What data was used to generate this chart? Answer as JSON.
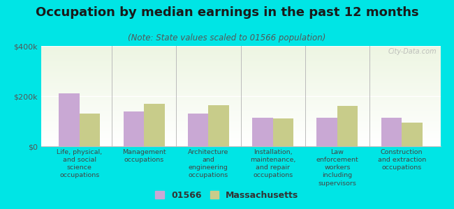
{
  "title": "Occupation by median earnings in the past 12 months",
  "subtitle": "(Note: State values scaled to 01566 population)",
  "categories": [
    "Life, physical,\nand social\nscience\noccupations",
    "Management\noccupations",
    "Architecture\nand\nengineering\noccupations",
    "Installation,\nmaintenance,\nand repair\noccupations",
    "Law\nenforcement\nworkers\nincluding\nsupervisors",
    "Construction\nand extraction\noccupations"
  ],
  "values_01566": [
    210000,
    140000,
    130000,
    115000,
    115000,
    115000
  ],
  "values_ma": [
    130000,
    170000,
    165000,
    110000,
    160000,
    95000
  ],
  "bar_color_01566": "#c9a8d4",
  "bar_color_ma": "#c8cc8a",
  "bg_outer": "#00e5e5",
  "ylim": [
    0,
    400000
  ],
  "yticks": [
    0,
    200000,
    400000
  ],
  "ytick_labels": [
    "$0",
    "$200k",
    "$400k"
  ],
  "legend_label_01566": "01566",
  "legend_label_ma": "Massachusetts",
  "watermark": "City-Data.com",
  "title_fontsize": 13,
  "subtitle_fontsize": 8.5,
  "tick_fontsize": 8,
  "legend_fontsize": 9
}
